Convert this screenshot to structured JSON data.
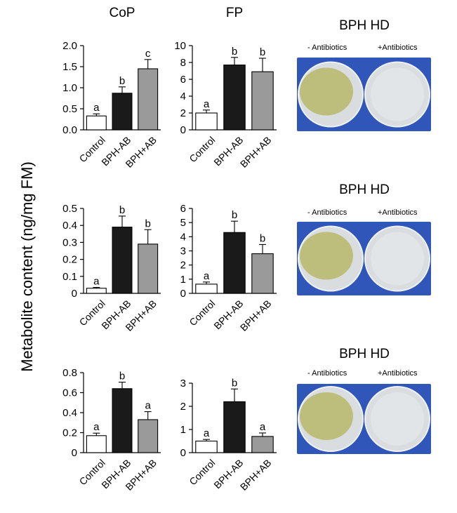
{
  "figure": {
    "column_titles": [
      "CoP",
      "FP"
    ],
    "ylabel": "Metabolite content  (ng/mg FM)"
  },
  "chart_data": [
    {
      "type": "bar",
      "panel": "CoP row 1",
      "categories": [
        "Control",
        "BPH-AB",
        "BPH+AB"
      ],
      "values": [
        0.33,
        0.87,
        1.45
      ],
      "errors": [
        0.05,
        0.15,
        0.22
      ],
      "sig": [
        "a",
        "b",
        "c"
      ],
      "ylim": [
        0,
        2.0
      ],
      "ticks": [
        "0.0",
        "0.5",
        "1.0",
        "1.5",
        "2.0"
      ],
      "tick_values": [
        0,
        0.5,
        1.0,
        1.5,
        2.0
      ],
      "colors": [
        "#ffffff",
        "#1a1a1a",
        "#9a9a9a"
      ]
    },
    {
      "type": "bar",
      "panel": "FP row 1",
      "categories": [
        "Control",
        "BPH-AB",
        "BPH+AB"
      ],
      "values": [
        2.0,
        7.7,
        6.9
      ],
      "errors": [
        0.35,
        0.9,
        1.6
      ],
      "sig": [
        "a",
        "b",
        "b"
      ],
      "ylim": [
        0,
        10
      ],
      "ticks": [
        "0",
        "2",
        "4",
        "6",
        "8",
        "10"
      ],
      "tick_values": [
        0,
        2,
        4,
        6,
        8,
        10
      ],
      "colors": [
        "#ffffff",
        "#1a1a1a",
        "#9a9a9a"
      ]
    },
    {
      "type": "bar",
      "panel": "CoP row 2",
      "categories": [
        "Control",
        "BPH-AB",
        "BPH+AB"
      ],
      "values": [
        0.03,
        0.39,
        0.29
      ],
      "errors": [
        0.005,
        0.065,
        0.085
      ],
      "sig": [
        "a",
        "b",
        "b"
      ],
      "ylim": [
        0,
        0.5
      ],
      "ticks": [
        "0",
        "0.1",
        "0.2",
        "0.3",
        "0.4",
        "0.5"
      ],
      "tick_values": [
        0,
        0.1,
        0.2,
        0.3,
        0.4,
        0.5
      ],
      "colors": [
        "#ffffff",
        "#1a1a1a",
        "#9a9a9a"
      ]
    },
    {
      "type": "bar",
      "panel": "FP row 2",
      "categories": [
        "Control",
        "BPH-AB",
        "BPH+AB"
      ],
      "values": [
        0.65,
        4.3,
        2.8
      ],
      "errors": [
        0.15,
        0.8,
        0.65
      ],
      "sig": [
        "a",
        "b",
        "b"
      ],
      "ylim": [
        0,
        6
      ],
      "ticks": [
        "0",
        "1",
        "2",
        "3",
        "4",
        "5",
        "6"
      ],
      "tick_values": [
        0,
        1,
        2,
        3,
        4,
        5,
        6
      ],
      "colors": [
        "#ffffff",
        "#1a1a1a",
        "#9a9a9a"
      ]
    },
    {
      "type": "bar",
      "panel": "CoP row 3",
      "categories": [
        "Control",
        "BPH-AB",
        "BPH+AB"
      ],
      "values": [
        0.17,
        0.64,
        0.33
      ],
      "errors": [
        0.025,
        0.065,
        0.08
      ],
      "sig": [
        "a",
        "b",
        "a"
      ],
      "ylim": [
        0,
        0.8
      ],
      "ticks": [
        "0",
        "0.2",
        "0.4",
        "0.6",
        "0.8"
      ],
      "tick_values": [
        0,
        0.2,
        0.4,
        0.6,
        0.8
      ],
      "colors": [
        "#ffffff",
        "#1a1a1a",
        "#9a9a9a"
      ]
    },
    {
      "type": "bar",
      "panel": "FP row 3",
      "categories": [
        "Control",
        "BPH-AB",
        "BPH+AB"
      ],
      "values": [
        0.5,
        2.2,
        0.7
      ],
      "errors": [
        0.07,
        0.55,
        0.15
      ],
      "sig": [
        "a",
        "b",
        "a"
      ],
      "ylim": [
        0,
        3
      ],
      "ticks": [
        "0",
        "1",
        "2",
        "3"
      ],
      "tick_values": [
        0,
        1,
        2,
        3
      ],
      "colors": [
        "#ffffff",
        "#1a1a1a",
        "#9a9a9a"
      ]
    }
  ],
  "plates": [
    {
      "title": "BPH HD",
      "left_label": "- Antibiotics",
      "right_label": "+Antibiotics"
    },
    {
      "title": "BPH HD",
      "left_label": "- Antibiotics",
      "right_label": "+Antibiotics"
    },
    {
      "title": "BPH HD",
      "left_label": "- Antibiotics",
      "right_label": "+Antibiotics"
    }
  ],
  "colors": {
    "photo_bg": "#2f56b8",
    "colony": "#b9b86a",
    "plate": "#d9dde0"
  }
}
